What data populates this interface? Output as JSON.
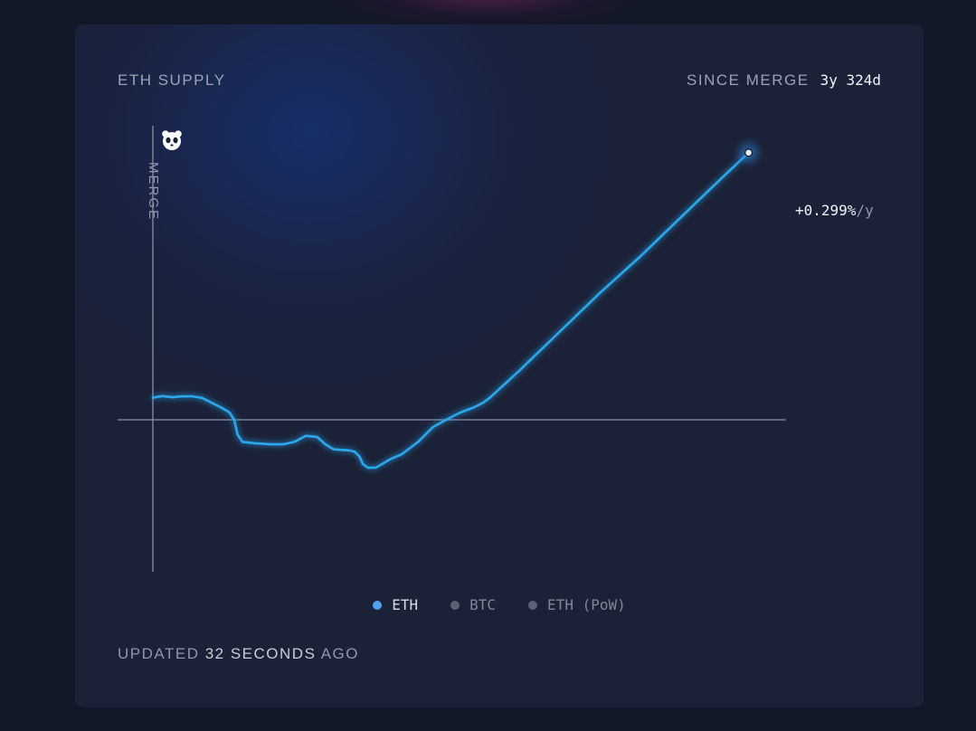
{
  "header": {
    "title": "ETH SUPPLY",
    "since_label": "SINCE MERGE",
    "since_value": "3y 324d"
  },
  "rate": {
    "value": "+0.299%",
    "unit": "/y"
  },
  "merge_marker": {
    "label": "MERGE",
    "icon": "panda-icon"
  },
  "legend": [
    {
      "label": "ETH",
      "active": true
    },
    {
      "label": "BTC",
      "active": false
    },
    {
      "label": "ETH (PoW)",
      "active": false
    }
  ],
  "footer": {
    "prefix": "UPDATED ",
    "count": "32",
    "unit": " SECONDS",
    "suffix": " AGO"
  },
  "colors": {
    "eth_line": "#2ba8ee",
    "active_dot": "#4fa3ea",
    "inactive_dot": "#5b6275",
    "axis": "#8a91a6"
  },
  "chart_data": {
    "type": "line",
    "title": "ETH SUPPLY",
    "xlabel": "",
    "ylabel": "",
    "x_unit": "years since merge",
    "y_unit": "% change in supply since merge",
    "xlim": [
      0,
      3.89
    ],
    "ylim": [
      -0.71,
      1.11
    ],
    "grid": false,
    "legend_position": "bottom-center",
    "series": [
      {
        "name": "ETH",
        "color": "#2ba8ee",
        "points": [
          [
            0.0,
            0.0
          ],
          [
            0.02,
            0.003
          ],
          [
            0.06,
            0.007
          ],
          [
            0.12,
            0.002
          ],
          [
            0.18,
            0.006
          ],
          [
            0.24,
            0.006
          ],
          [
            0.3,
            0.0
          ],
          [
            0.36,
            -0.02
          ],
          [
            0.42,
            -0.04
          ],
          [
            0.47,
            -0.06
          ],
          [
            0.5,
            -0.09
          ],
          [
            0.52,
            -0.15
          ],
          [
            0.55,
            -0.18
          ],
          [
            0.62,
            -0.185
          ],
          [
            0.72,
            -0.19
          ],
          [
            0.8,
            -0.19
          ],
          [
            0.87,
            -0.18
          ],
          [
            0.94,
            -0.155
          ],
          [
            1.01,
            -0.16
          ],
          [
            1.06,
            -0.19
          ],
          [
            1.11,
            -0.21
          ],
          [
            1.21,
            -0.215
          ],
          [
            1.24,
            -0.22
          ],
          [
            1.27,
            -0.24
          ],
          [
            1.29,
            -0.27
          ],
          [
            1.32,
            -0.285
          ],
          [
            1.37,
            -0.285
          ],
          [
            1.41,
            -0.27
          ],
          [
            1.46,
            -0.25
          ],
          [
            1.53,
            -0.23
          ],
          [
            1.63,
            -0.18
          ],
          [
            1.72,
            -0.12
          ],
          [
            1.8,
            -0.09
          ],
          [
            1.89,
            -0.06
          ],
          [
            1.97,
            -0.04
          ],
          [
            2.03,
            -0.02
          ],
          [
            2.07,
            0.0
          ],
          [
            2.25,
            0.11
          ],
          [
            2.5,
            0.27
          ],
          [
            2.75,
            0.43
          ],
          [
            3.0,
            0.58
          ],
          [
            3.25,
            0.74
          ],
          [
            3.5,
            0.9
          ],
          [
            3.66,
            1.0
          ]
        ]
      }
    ],
    "annotations": [
      {
        "text": "MERGE",
        "x": 0.0
      },
      {
        "text": "+0.299%/y",
        "x": 3.66,
        "y": 1.0
      }
    ]
  }
}
